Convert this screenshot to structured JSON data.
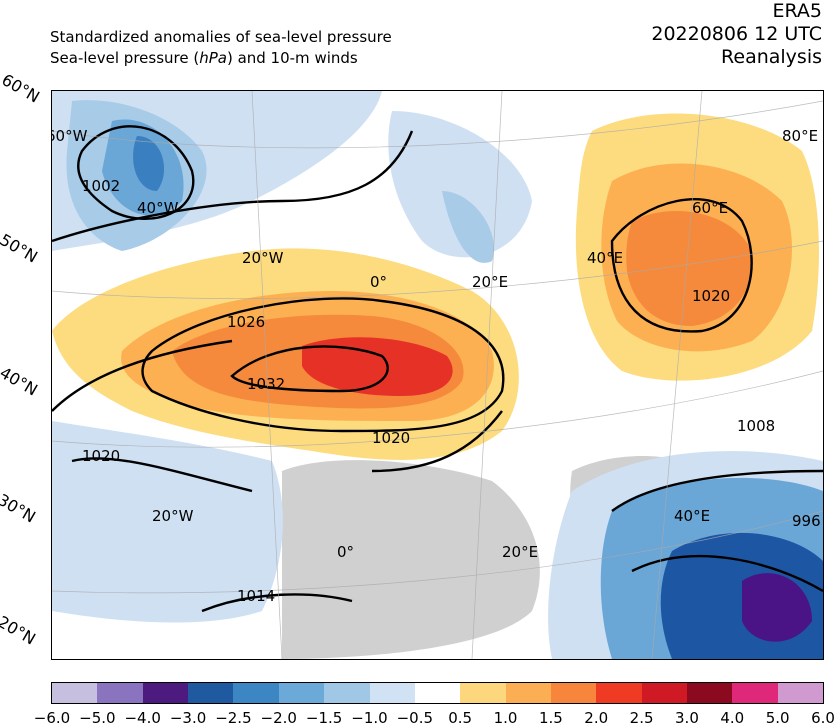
{
  "header": {
    "title_line1": "Standardized anomalies of sea-level pressure",
    "title_line2_pre": "Sea-level pressure (",
    "title_line2_unit": "hPa",
    "title_line2_post": ") and 10-m winds",
    "dataset": "ERA5",
    "datetime": "20220806 12 UTC",
    "source_type": "Reanalysis"
  },
  "map": {
    "lat_labels": [
      "60°N",
      "50°N",
      "40°N",
      "30°N",
      "20°N"
    ],
    "lon_labels": [
      "60°W",
      "40°W",
      "20°W",
      "0°",
      "20°E",
      "40°E",
      "60°E",
      "80°E",
      "20°W",
      "0°",
      "20°E",
      "40°E"
    ],
    "isobar_labels": [
      "1002",
      "1026",
      "1032",
      "1020",
      "1020",
      "1020",
      "1014",
      "1008",
      "996"
    ],
    "colors": {
      "land": "#c8c8c8",
      "anom_pos": [
        "#fddc80",
        "#fdb052",
        "#f58a3c",
        "#ed5a2c",
        "#e63226"
      ],
      "anom_neg": [
        "#cfe0f3",
        "#a8cbe8",
        "#6aa6d6",
        "#3a7fc0",
        "#1d56a3",
        "#4a1486"
      ]
    }
  },
  "colorbar": {
    "ticks": [
      "−6.0",
      "−5.0",
      "−4.0",
      "−3.0",
      "−2.5",
      "−2.0",
      "−1.5",
      "−1.0",
      "−0.5",
      "0.5",
      "1.0",
      "1.5",
      "2.0",
      "2.5",
      "3.0",
      "4.0",
      "5.0",
      "6.0"
    ],
    "colors": [
      "#c6bfe0",
      "#8a74bf",
      "#4d1a7f",
      "#1f5aa0",
      "#3c86c4",
      "#6ba9d8",
      "#a0c8e6",
      "#d0e2f4",
      "#ffffff",
      "#fdd77e",
      "#fcae55",
      "#f7853b",
      "#ef3a24",
      "#cf1a26",
      "#8b0a20",
      "#e0287a",
      "#d09ad0"
    ]
  }
}
